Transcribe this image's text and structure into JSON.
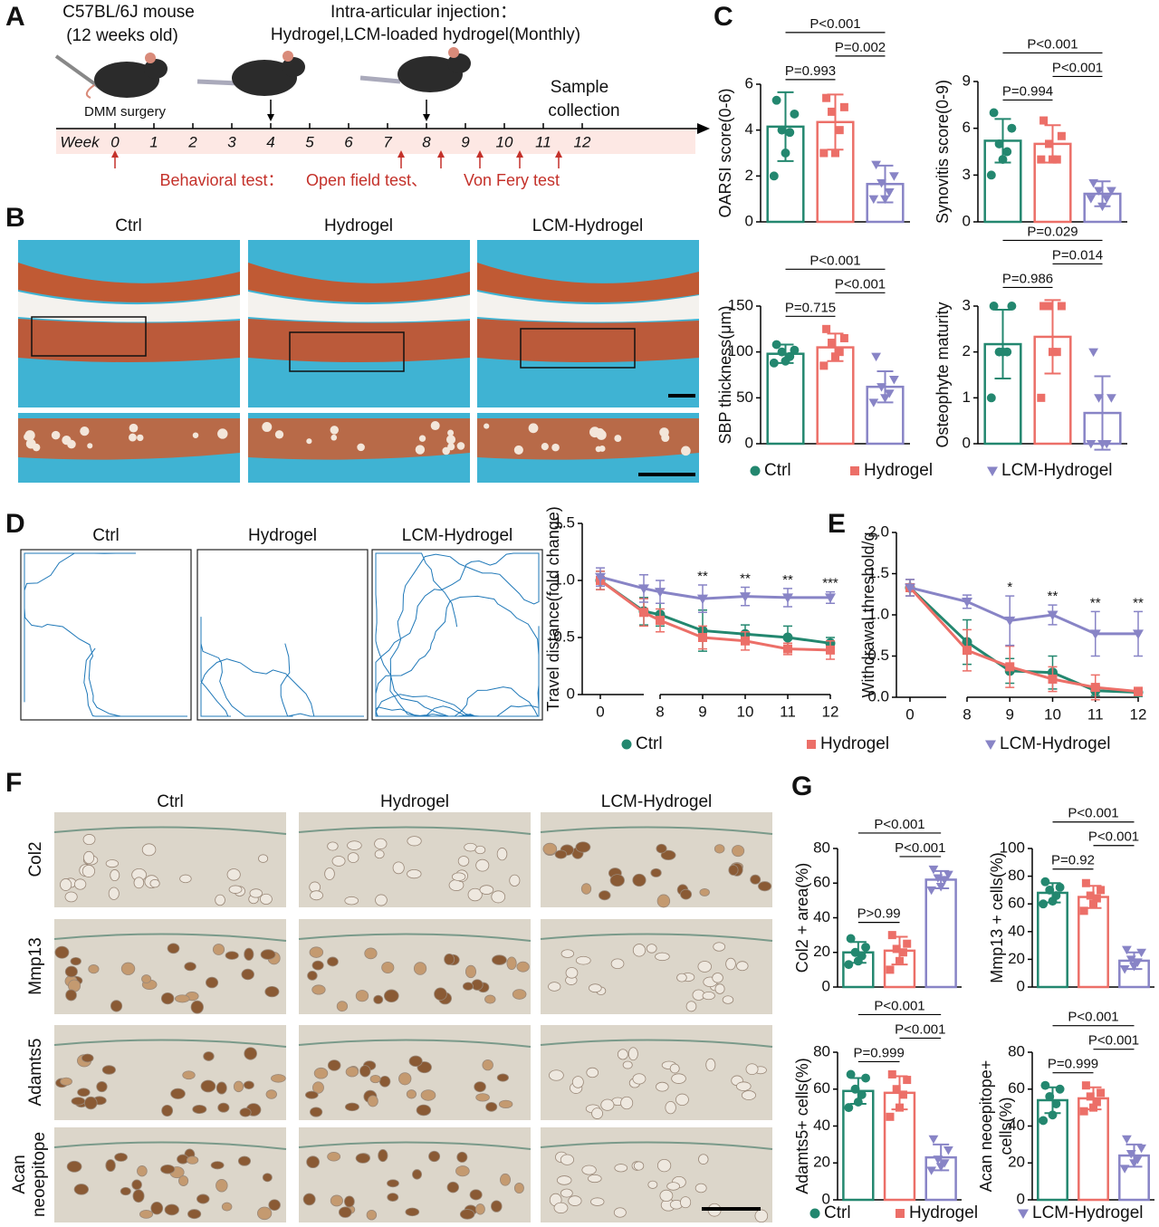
{
  "figure": {
    "panel_labels": [
      "A",
      "B",
      "C",
      "D",
      "E",
      "F",
      "G"
    ],
    "panel_a": {
      "mouse": [
        "C57BL/6J mouse",
        "(12 weeks old)"
      ],
      "injection": [
        "Intra-articular injection：",
        "Hydrogel,LCM-loaded hydrogel(Monthly)"
      ],
      "surgery": "DMM surgery",
      "sample": [
        "Sample",
        "collection"
      ],
      "week_label": "Week",
      "weeks": [
        0,
        1,
        2,
        3,
        4,
        5,
        6,
        7,
        8,
        9,
        10,
        11,
        12
      ],
      "behavior": [
        "Behavioral test：",
        "Open field test、",
        "Von Fery test"
      ]
    },
    "panel_b": {
      "titles": [
        "Ctrl",
        "Hydrogel",
        "LCM-Hydrogel"
      ]
    },
    "panel_d": {
      "titles": [
        "Ctrl",
        "Hydrogel",
        "LCM-Hydrogel"
      ]
    },
    "panel_f": {
      "titles": [
        "Ctrl",
        "Hydrogel",
        "LCM-Hydrogel"
      ],
      "rows": [
        "Col2",
        "Mmp13",
        "Adamts5",
        [
          "Acan",
          "neoepitope"
        ]
      ]
    }
  },
  "chart_data": [
    {
      "type": "bar",
      "ylabel": "OARSI score(0-6)",
      "ylim": [
        0,
        6
      ],
      "yticks": [
        0,
        2,
        4,
        6
      ],
      "series": [
        {
          "name": "Ctrl",
          "color": "#23876f",
          "marker": "circle",
          "value": 4.15,
          "error": 1.5,
          "points": [
            5.3,
            4.7,
            4.0,
            3.9,
            3.0,
            2.0
          ]
        },
        {
          "name": "Hydrogel",
          "color": "#ec6f68",
          "marker": "square",
          "value": 4.35,
          "error": 1.2,
          "points": [
            5.4,
            5.0,
            4.8,
            4.0,
            3.0,
            3.0
          ]
        },
        {
          "name": "LCM-Hydrogel",
          "color": "#8884c6",
          "marker": "triangle",
          "value": 1.65,
          "error": 0.8,
          "points": [
            2.5,
            2.0,
            1.7,
            1.3,
            1.0,
            1.0
          ]
        }
      ],
      "annotations": [
        {
          "text": "P=0.993",
          "between": [
            0,
            1
          ]
        },
        {
          "text": "P=0.002",
          "between": [
            1,
            2
          ]
        },
        {
          "text": "P<0.001",
          "between": [
            0,
            2
          ]
        }
      ]
    },
    {
      "type": "bar",
      "ylabel": "Synovitis score(0-9)",
      "ylim": [
        0,
        9
      ],
      "yticks": [
        0,
        3,
        6,
        9
      ],
      "series": [
        {
          "name": "Ctrl",
          "color": "#23876f",
          "marker": "circle",
          "value": 5.2,
          "error": 1.4,
          "points": [
            7.0,
            6.0,
            5.0,
            4.5,
            4.0,
            3.0
          ]
        },
        {
          "name": "Hydrogel",
          "color": "#ec6f68",
          "marker": "square",
          "value": 5.0,
          "error": 1.2,
          "points": [
            6.5,
            5.5,
            5.0,
            4.0,
            4.0,
            4.0
          ]
        },
        {
          "name": "LCM-Hydrogel",
          "color": "#8884c6",
          "marker": "triangle",
          "value": 1.8,
          "error": 0.8,
          "points": [
            2.5,
            2.0,
            2.0,
            1.5,
            1.0,
            1.5
          ]
        }
      ],
      "annotations": [
        {
          "text": "P=0.994",
          "between": [
            0,
            1
          ]
        },
        {
          "text": "P<0.001",
          "between": [
            1,
            2
          ]
        },
        {
          "text": "P<0.001",
          "between": [
            0,
            2
          ]
        }
      ]
    },
    {
      "type": "bar",
      "ylabel": "SBP thickness(μm)",
      "ylim": [
        0,
        150
      ],
      "yticks": [
        0,
        50,
        100,
        150
      ],
      "series": [
        {
          "name": "Ctrl",
          "color": "#23876f",
          "marker": "circle",
          "value": 98,
          "error": 10,
          "points": [
            108,
            102,
            100,
            95,
            90,
            88
          ]
        },
        {
          "name": "Hydrogel",
          "color": "#ec6f68",
          "marker": "square",
          "value": 105,
          "error": 15,
          "points": [
            125,
            115,
            110,
            100,
            95,
            85
          ]
        },
        {
          "name": "LCM-Hydrogel",
          "color": "#8884c6",
          "marker": "triangle",
          "value": 62,
          "error": 17,
          "points": [
            95,
            70,
            62,
            55,
            50,
            45
          ]
        }
      ],
      "annotations": [
        {
          "text": "P=0.715",
          "between": [
            0,
            1
          ]
        },
        {
          "text": "P<0.001",
          "between": [
            1,
            2
          ]
        },
        {
          "text": "P<0.001",
          "between": [
            0,
            2
          ]
        }
      ]
    },
    {
      "type": "bar",
      "ylabel": "Osteophyte maturity",
      "ylim": [
        0,
        3
      ],
      "yticks": [
        0,
        1,
        2,
        3
      ],
      "series": [
        {
          "name": "Ctrl",
          "color": "#23876f",
          "marker": "circle",
          "value": 2.17,
          "error": 0.75,
          "points": [
            3,
            3,
            2,
            2,
            2,
            1
          ]
        },
        {
          "name": "Hydrogel",
          "color": "#ec6f68",
          "marker": "square",
          "value": 2.33,
          "error": 0.8,
          "points": [
            3,
            3,
            3,
            2,
            2,
            1
          ]
        },
        {
          "name": "LCM-Hydrogel",
          "color": "#8884c6",
          "marker": "triangle",
          "value": 0.67,
          "error": 0.8,
          "points": [
            2,
            1,
            1,
            0,
            0,
            0
          ]
        }
      ],
      "annotations": [
        {
          "text": "P=0.986",
          "between": [
            0,
            1
          ]
        },
        {
          "text": "P=0.014",
          "between": [
            1,
            2
          ]
        },
        {
          "text": "P=0.029",
          "between": [
            0,
            2
          ]
        }
      ]
    },
    {
      "type": "line",
      "ylabel": "Travel distance(fold change)",
      "ylim": [
        0,
        1.5
      ],
      "yticks": [
        0,
        0.5,
        {
          "value": 1,
          "label": "1.0"
        },
        1.5
      ],
      "x_segments": [
        {
          "xlim": [
            0,
            4
          ],
          "xticks": [
            0
          ]
        },
        {
          "xlim": [
            8,
            12
          ],
          "xticks": [
            8,
            9,
            10,
            11,
            12
          ]
        }
      ],
      "x": [
        0,
        4,
        8,
        9,
        10,
        11,
        12
      ],
      "series": [
        {
          "name": "Ctrl",
          "color": "#23876f",
          "marker": "circle",
          "values": [
            1.0,
            0.73,
            0.7,
            0.56,
            0.53,
            0.5,
            0.45
          ],
          "errors": [
            0.08,
            0.12,
            0.1,
            0.18,
            0.08,
            0.1,
            0.05
          ]
        },
        {
          "name": "Hydrogel",
          "color": "#ec6f68",
          "marker": "square",
          "values": [
            1.0,
            0.72,
            0.65,
            0.5,
            0.47,
            0.4,
            0.39
          ],
          "errors": [
            0.08,
            0.12,
            0.1,
            0.1,
            0.08,
            0.05,
            0.08
          ]
        },
        {
          "name": "LCM-Hydrogel",
          "color": "#8884c6",
          "marker": "triangle",
          "values": [
            1.03,
            0.93,
            0.9,
            0.84,
            0.86,
            0.85,
            0.85
          ],
          "errors": [
            0.08,
            0.12,
            0.1,
            0.12,
            0.08,
            0.08,
            0.05
          ]
        }
      ],
      "annotations": [
        {
          "x": 9,
          "text": "**"
        },
        {
          "x": 10,
          "text": "**"
        },
        {
          "x": 11,
          "text": "**"
        },
        {
          "x": 12,
          "text": "***"
        }
      ]
    },
    {
      "type": "line",
      "ylabel": "Withdrawal threshold/g",
      "ylim": [
        0,
        2
      ],
      "yticks": [
        {
          "value": 0,
          "label": "0.0"
        },
        0.5,
        {
          "value": 1,
          "label": "1.0"
        },
        1.5,
        {
          "value": 2,
          "label": "2.0"
        }
      ],
      "x_segments": [
        {
          "xlim": [
            0,
            4
          ],
          "xticks": [
            0
          ]
        },
        {
          "xlim": [
            8,
            12
          ],
          "xticks": [
            8,
            9,
            10,
            11,
            12
          ]
        }
      ],
      "x": [
        0,
        8,
        9,
        10,
        11,
        12
      ],
      "series": [
        {
          "name": "Ctrl",
          "color": "#23876f",
          "marker": "circle",
          "values": [
            1.33,
            0.67,
            0.32,
            0.3,
            0.08,
            0.06
          ],
          "errors": [
            0.1,
            0.27,
            0.15,
            0.2,
            0.06,
            0.05
          ]
        },
        {
          "name": "Hydrogel",
          "color": "#ec6f68",
          "marker": "square",
          "values": [
            1.33,
            0.57,
            0.37,
            0.22,
            0.12,
            0.07
          ],
          "errors": [
            0.1,
            0.25,
            0.25,
            0.15,
            0.15,
            0.05
          ]
        },
        {
          "name": "LCM-Hydrogel",
          "color": "#8884c6",
          "marker": "triangle",
          "values": [
            1.33,
            1.16,
            0.93,
            1.0,
            0.77,
            0.77
          ],
          "errors": [
            0.1,
            0.08,
            0.3,
            0.12,
            0.27,
            0.27
          ]
        }
      ],
      "annotations": [
        {
          "x": 9,
          "text": "*"
        },
        {
          "x": 10,
          "text": "**"
        },
        {
          "x": 11,
          "text": "**"
        },
        {
          "x": 12,
          "text": "**"
        }
      ]
    },
    {
      "type": "bar",
      "ylabel": "Col2 + area(%)",
      "ylim": [
        0,
        80
      ],
      "yticks": [
        0,
        20,
        40,
        60,
        80
      ],
      "series": [
        {
          "name": "Ctrl",
          "color": "#23876f",
          "marker": "circle",
          "value": 20,
          "error": 6,
          "points": [
            28,
            23,
            20,
            18,
            15,
            13
          ]
        },
        {
          "name": "Hydrogel",
          "color": "#ec6f68",
          "marker": "square",
          "value": 21,
          "error": 8,
          "points": [
            30,
            25,
            22,
            20,
            15,
            10
          ]
        },
        {
          "name": "LCM-Hydrogel",
          "color": "#8884c6",
          "marker": "triangle",
          "value": 62,
          "error": 5,
          "points": [
            68,
            65,
            63,
            62,
            58,
            56
          ]
        }
      ],
      "annotations": [
        {
          "text": "P>0.99",
          "between": [
            0,
            1
          ]
        },
        {
          "text": "P<0.001",
          "between": [
            1,
            2
          ]
        },
        {
          "text": "P<0.001",
          "between": [
            0,
            2
          ]
        }
      ]
    },
    {
      "type": "bar",
      "ylabel": "Mmp13 + cells(%)",
      "ylim": [
        0,
        100
      ],
      "yticks": [
        0,
        20,
        40,
        60,
        80,
        100
      ],
      "series": [
        {
          "name": "Ctrl",
          "color": "#23876f",
          "marker": "circle",
          "value": 68,
          "error": 7,
          "points": [
            76,
            72,
            70,
            66,
            62,
            60
          ]
        },
        {
          "name": "Hydrogel",
          "color": "#ec6f68",
          "marker": "square",
          "value": 65,
          "error": 8,
          "points": [
            75,
            70,
            66,
            64,
            60,
            55
          ]
        },
        {
          "name": "LCM-Hydrogel",
          "color": "#8884c6",
          "marker": "triangle",
          "value": 19,
          "error": 6,
          "points": [
            27,
            25,
            20,
            18,
            15,
            13
          ]
        }
      ],
      "annotations": [
        {
          "text": "P=0.92",
          "between": [
            0,
            1
          ]
        },
        {
          "text": "P<0.001",
          "between": [
            1,
            2
          ]
        },
        {
          "text": "P<0.001",
          "between": [
            0,
            2
          ]
        }
      ]
    },
    {
      "type": "bar",
      "ylabel": "Adamts5+ cells(%)",
      "ylim": [
        0,
        80
      ],
      "yticks": [
        0,
        20,
        40,
        60,
        80
      ],
      "series": [
        {
          "name": "Ctrl",
          "color": "#23876f",
          "marker": "circle",
          "value": 59,
          "error": 7,
          "points": [
            68,
            66,
            60,
            57,
            53,
            50
          ]
        },
        {
          "name": "Hydrogel",
          "color": "#ec6f68",
          "marker": "square",
          "value": 58,
          "error": 9,
          "points": [
            68,
            65,
            60,
            57,
            50,
            45
          ]
        },
        {
          "name": "LCM-Hydrogel",
          "color": "#8884c6",
          "marker": "triangle",
          "value": 23,
          "error": 7,
          "points": [
            33,
            27,
            22,
            20,
            18,
            16
          ]
        }
      ],
      "annotations": [
        {
          "text": "P=0.999",
          "between": [
            0,
            1
          ]
        },
        {
          "text": "P<0.001",
          "between": [
            1,
            2
          ]
        },
        {
          "text": "P<0.001",
          "between": [
            0,
            2
          ]
        }
      ]
    },
    {
      "type": "bar",
      "ylabel": [
        "Acan neoepitope+",
        "cells(%)"
      ],
      "ylim": [
        0,
        80
      ],
      "yticks": [
        0,
        20,
        40,
        60,
        80
      ],
      "series": [
        {
          "name": "Ctrl",
          "color": "#23876f",
          "marker": "circle",
          "value": 54,
          "error": 7,
          "points": [
            62,
            60,
            56,
            52,
            46,
            43
          ]
        },
        {
          "name": "Hydrogel",
          "color": "#ec6f68",
          "marker": "square",
          "value": 55,
          "error": 6,
          "points": [
            62,
            58,
            56,
            53,
            50,
            48
          ]
        },
        {
          "name": "LCM-Hydrogel",
          "color": "#8884c6",
          "marker": "triangle",
          "value": 24,
          "error": 6,
          "points": [
            33,
            28,
            25,
            22,
            20,
            17
          ]
        }
      ],
      "annotations": [
        {
          "text": "P=0.999",
          "between": [
            0,
            1
          ]
        },
        {
          "text": "P<0.001",
          "between": [
            1,
            2
          ]
        },
        {
          "text": "P<0.001",
          "between": [
            0,
            2
          ]
        }
      ]
    }
  ]
}
